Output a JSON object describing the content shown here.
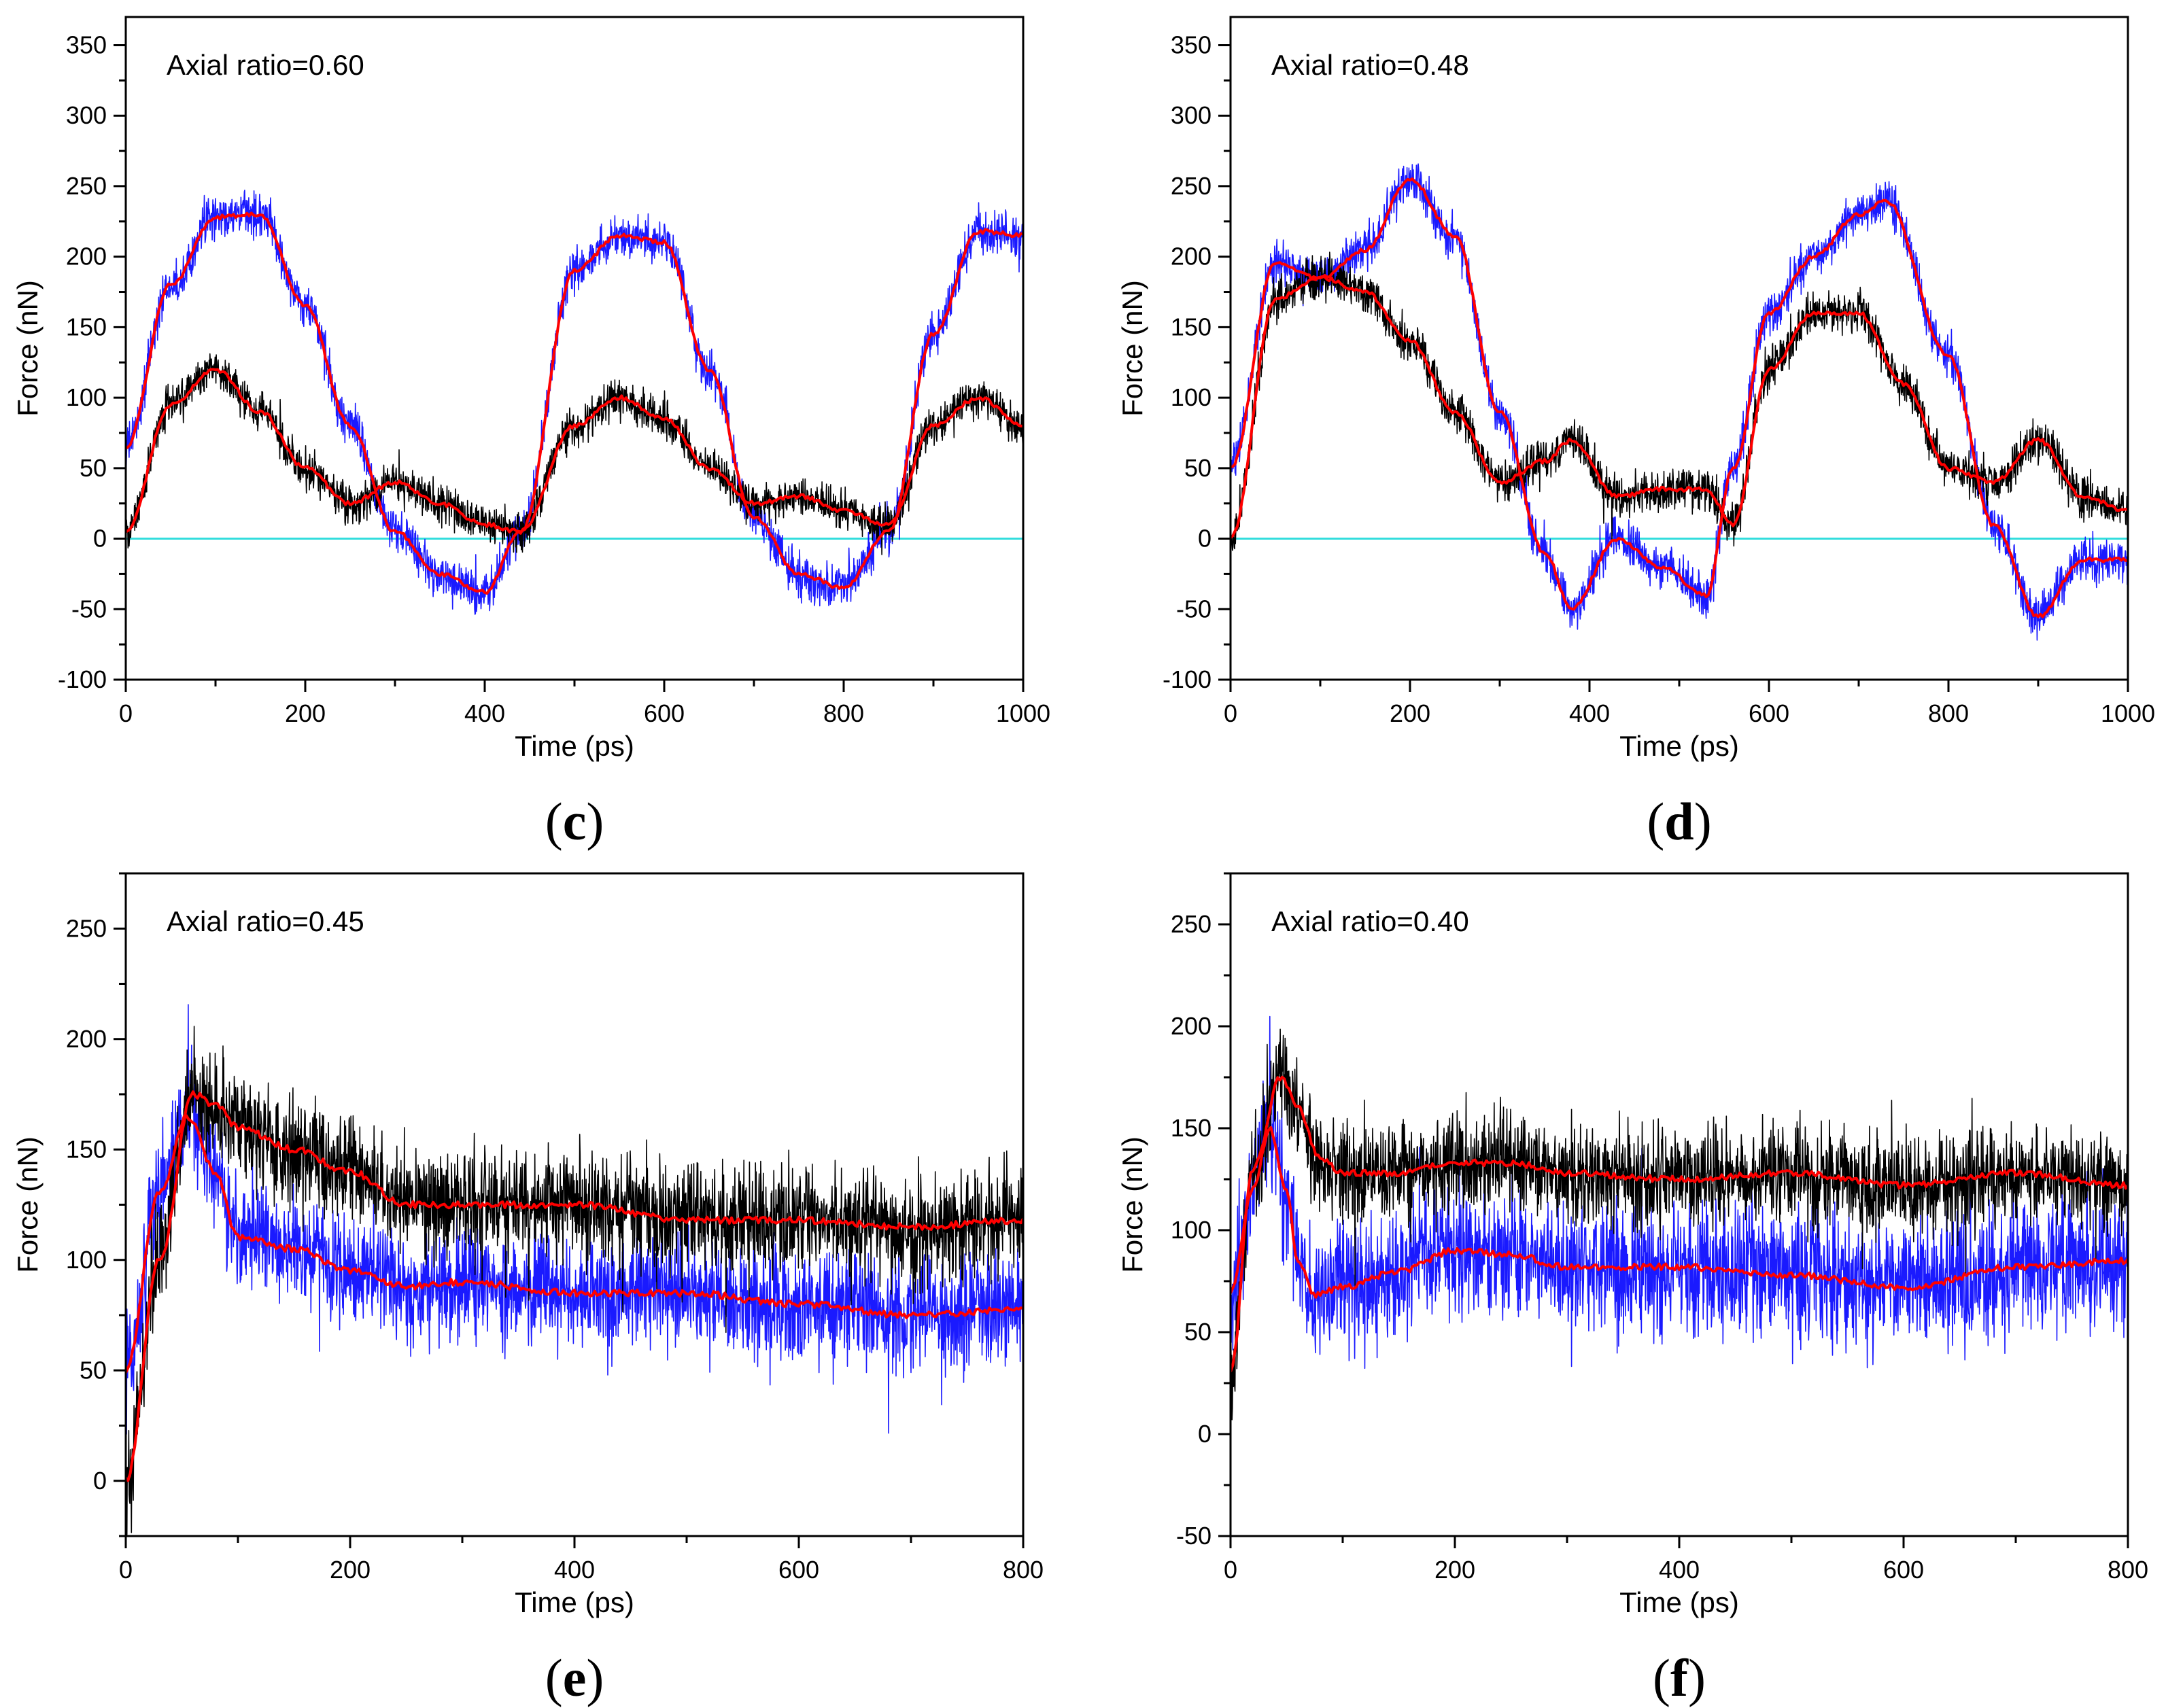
{
  "colors": {
    "noisy_series_black": "#000000",
    "noisy_series_blue": "#1a1aff",
    "smooth_fit": "#ff0000",
    "zero_line": "#33dddd"
  },
  "chart_data": [
    {
      "type": "line",
      "panel": "c",
      "caption_open": "(",
      "caption_letter": "c",
      "caption_close": ")",
      "annotation": "Axial ratio=0.60",
      "xlabel": "Time (ps)",
      "ylabel": "Force (nN)",
      "xlim": [
        0,
        1000
      ],
      "ylim": [
        -100,
        370
      ],
      "xticks": [
        0,
        200,
        400,
        600,
        800,
        1000
      ],
      "yticks": [
        -100,
        -50,
        0,
        50,
        100,
        150,
        200,
        250,
        300,
        350
      ],
      "zero_line": true,
      "series": [
        {
          "color": "blue",
          "noise_amplitude": 22,
          "role": "noisy",
          "x": [
            0,
            50,
            100,
            150,
            200,
            250,
            300,
            350,
            400,
            440,
            500,
            550,
            600,
            650,
            700,
            750,
            800,
            850,
            900,
            950,
            1000
          ],
          "values": [
            65,
            180,
            228,
            230,
            165,
            80,
            5,
            -25,
            -38,
            5,
            190,
            215,
            210,
            120,
            15,
            -25,
            -35,
            5,
            145,
            218,
            215
          ]
        },
        {
          "color": "black",
          "noise_amplitude": 20,
          "role": "noisy",
          "x": [
            0,
            50,
            100,
            150,
            200,
            250,
            300,
            350,
            400,
            440,
            500,
            550,
            600,
            650,
            700,
            750,
            800,
            850,
            900,
            950,
            1000
          ],
          "values": [
            5,
            95,
            120,
            90,
            50,
            25,
            40,
            25,
            10,
            5,
            80,
            100,
            85,
            50,
            25,
            30,
            20,
            10,
            80,
            100,
            80
          ]
        },
        {
          "color": "red",
          "role": "smooth",
          "x": [
            0,
            50,
            100,
            150,
            200,
            250,
            300,
            350,
            400,
            440,
            500,
            550,
            600,
            650,
            700,
            750,
            800,
            850,
            900,
            950,
            1000
          ],
          "values": [
            65,
            180,
            228,
            230,
            165,
            80,
            5,
            -25,
            -38,
            5,
            190,
            215,
            210,
            120,
            15,
            -25,
            -35,
            5,
            145,
            218,
            215
          ]
        },
        {
          "color": "red",
          "role": "smooth",
          "x": [
            0,
            50,
            100,
            150,
            200,
            250,
            300,
            350,
            400,
            440,
            500,
            550,
            600,
            650,
            700,
            750,
            800,
            850,
            900,
            950,
            1000
          ],
          "values": [
            5,
            95,
            120,
            90,
            50,
            25,
            40,
            25,
            10,
            5,
            80,
            100,
            85,
            50,
            25,
            30,
            20,
            10,
            80,
            100,
            80
          ]
        }
      ]
    },
    {
      "type": "line",
      "panel": "d",
      "caption_open": "(",
      "caption_letter": "d",
      "caption_close": ")",
      "annotation": "Axial ratio=0.48",
      "xlabel": "Time (ps)",
      "ylabel": "Force (nN)",
      "xlim": [
        0,
        1000
      ],
      "ylim": [
        -100,
        370
      ],
      "xticks": [
        0,
        200,
        400,
        600,
        800,
        1000
      ],
      "yticks": [
        -100,
        -50,
        0,
        50,
        100,
        150,
        200,
        250,
        300,
        350
      ],
      "zero_line": true,
      "series": [
        {
          "color": "blue",
          "noise_amplitude": 22,
          "role": "noisy",
          "x": [
            0,
            50,
            100,
            150,
            200,
            250,
            300,
            350,
            380,
            430,
            480,
            530,
            560,
            600,
            650,
            700,
            730,
            800,
            850,
            900,
            950,
            1000
          ],
          "values": [
            50,
            195,
            185,
            205,
            255,
            215,
            90,
            -10,
            -50,
            0,
            -20,
            -40,
            50,
            160,
            200,
            230,
            240,
            130,
            10,
            -55,
            -15,
            -15
          ]
        },
        {
          "color": "black",
          "noise_amplitude": 22,
          "role": "noisy",
          "x": [
            0,
            50,
            100,
            150,
            200,
            250,
            300,
            350,
            380,
            430,
            480,
            530,
            560,
            600,
            650,
            700,
            750,
            800,
            850,
            900,
            950,
            1000
          ],
          "values": [
            0,
            170,
            185,
            175,
            140,
            90,
            40,
            55,
            70,
            30,
            35,
            35,
            10,
            120,
            160,
            160,
            110,
            50,
            40,
            70,
            30,
            20
          ]
        },
        {
          "color": "red",
          "role": "smooth",
          "x": [
            0,
            50,
            100,
            150,
            200,
            250,
            300,
            350,
            380,
            430,
            480,
            530,
            560,
            600,
            650,
            700,
            730,
            800,
            850,
            900,
            950,
            1000
          ],
          "values": [
            50,
            195,
            185,
            205,
            255,
            215,
            90,
            -10,
            -50,
            0,
            -20,
            -40,
            50,
            160,
            200,
            230,
            240,
            130,
            10,
            -55,
            -15,
            -15
          ]
        },
        {
          "color": "red",
          "role": "smooth",
          "x": [
            0,
            50,
            100,
            150,
            200,
            250,
            300,
            350,
            380,
            430,
            480,
            530,
            560,
            600,
            650,
            700,
            750,
            800,
            850,
            900,
            950,
            1000
          ],
          "values": [
            0,
            170,
            185,
            175,
            140,
            90,
            40,
            55,
            70,
            30,
            35,
            35,
            10,
            120,
            160,
            160,
            110,
            50,
            40,
            70,
            30,
            20
          ]
        }
      ]
    },
    {
      "type": "line",
      "panel": "e",
      "caption_open": "(",
      "caption_letter": "e",
      "caption_close": ")",
      "annotation": "Axial ratio=0.45",
      "xlabel": "Time (ps)",
      "ylabel": "Force (nN)",
      "xlim": [
        0,
        800
      ],
      "ylim": [
        -25,
        275
      ],
      "xticks": [
        0,
        200,
        400,
        600,
        800
      ],
      "yticks": [
        0,
        50,
        100,
        150,
        200,
        250
      ],
      "zero_line": false,
      "series": [
        {
          "color": "blue",
          "noise_amplitude": 35,
          "role": "noisy",
          "x": [
            0,
            30,
            55,
            80,
            100,
            150,
            200,
            250,
            300,
            400,
            500,
            600,
            700,
            800
          ],
          "values": [
            50,
            130,
            165,
            140,
            110,
            105,
            95,
            88,
            90,
            85,
            85,
            80,
            75,
            78
          ]
        },
        {
          "color": "black",
          "noise_amplitude": 35,
          "role": "noisy",
          "x": [
            0,
            30,
            60,
            80,
            100,
            150,
            200,
            250,
            300,
            400,
            500,
            600,
            700,
            800
          ],
          "values": [
            0,
            100,
            175,
            170,
            160,
            150,
            140,
            125,
            125,
            125,
            118,
            118,
            115,
            118
          ]
        },
        {
          "color": "red",
          "role": "smooth",
          "x": [
            0,
            30,
            55,
            80,
            100,
            150,
            200,
            250,
            300,
            400,
            500,
            600,
            700,
            800
          ],
          "values": [
            50,
            130,
            165,
            140,
            110,
            105,
            95,
            88,
            90,
            85,
            85,
            80,
            75,
            78
          ]
        },
        {
          "color": "red",
          "role": "smooth",
          "x": [
            0,
            30,
            60,
            80,
            100,
            150,
            200,
            250,
            300,
            400,
            500,
            600,
            700,
            800
          ],
          "values": [
            0,
            100,
            175,
            170,
            160,
            150,
            140,
            125,
            125,
            125,
            118,
            118,
            115,
            118
          ]
        }
      ]
    },
    {
      "type": "line",
      "panel": "f",
      "caption_open": "(",
      "caption_letter": "f",
      "caption_close": ")",
      "annotation": "Axial ratio=0.40",
      "xlabel": "Time (ps)",
      "ylabel": "Force (nN)",
      "xlim": [
        0,
        800
      ],
      "ylim": [
        -50,
        275
      ],
      "xticks": [
        0,
        200,
        400,
        600,
        800
      ],
      "yticks": [
        -50,
        0,
        50,
        100,
        150,
        200,
        250
      ],
      "zero_line": false,
      "series": [
        {
          "color": "blue",
          "noise_amplitude": 45,
          "role": "noisy",
          "x": [
            0,
            20,
            35,
            50,
            60,
            75,
            100,
            150,
            200,
            250,
            300,
            400,
            500,
            600,
            700,
            800
          ],
          "values": [
            70,
            120,
            150,
            120,
            85,
            68,
            72,
            80,
            90,
            88,
            82,
            82,
            78,
            72,
            82,
            85
          ]
        },
        {
          "color": "black",
          "noise_amplitude": 35,
          "role": "noisy",
          "x": [
            0,
            20,
            45,
            60,
            80,
            100,
            150,
            200,
            250,
            300,
            400,
            500,
            600,
            700,
            800
          ],
          "values": [
            30,
            130,
            175,
            160,
            135,
            128,
            128,
            133,
            133,
            128,
            125,
            128,
            122,
            128,
            122
          ]
        },
        {
          "color": "red",
          "role": "smooth",
          "x": [
            0,
            20,
            35,
            50,
            60,
            75,
            100,
            150,
            200,
            250,
            300,
            400,
            500,
            600,
            700,
            800
          ],
          "values": [
            70,
            120,
            150,
            120,
            85,
            68,
            72,
            80,
            90,
            88,
            82,
            82,
            78,
            72,
            82,
            85
          ]
        },
        {
          "color": "red",
          "role": "smooth",
          "x": [
            0,
            20,
            45,
            60,
            80,
            100,
            150,
            200,
            250,
            300,
            400,
            500,
            600,
            700,
            800
          ],
          "values": [
            30,
            130,
            175,
            160,
            135,
            128,
            128,
            133,
            133,
            128,
            125,
            128,
            122,
            128,
            122
          ]
        }
      ]
    }
  ]
}
